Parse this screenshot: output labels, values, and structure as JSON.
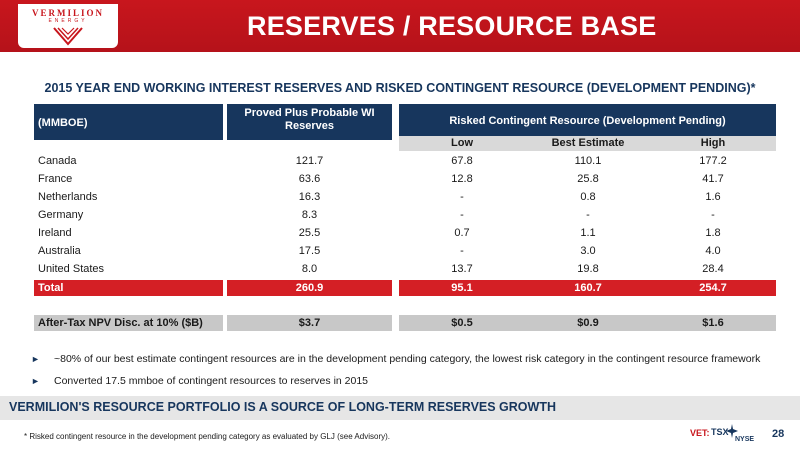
{
  "header": {
    "logo_text": "VERMILION",
    "logo_sub": "ENERGY",
    "title": "RESERVES / RESOURCE BASE"
  },
  "subtitle": "2015 YEAR END WORKING INTEREST RESERVES AND RISKED CONTINGENT RESOURCE (DEVELOPMENT PENDING)*",
  "table": {
    "unit_header": "(MMBOE)",
    "pp_header_line1": "Proved Plus Probable WI",
    "pp_header_line2": "Reserves",
    "rc_header": "Risked Contingent Resource (Development Pending)",
    "sub_headers": [
      "Low",
      "Best Estimate",
      "High"
    ],
    "rows": [
      [
        "Canada",
        "121.7",
        "67.8",
        "110.1",
        "177.2"
      ],
      [
        "France",
        "63.6",
        "12.8",
        "25.8",
        "41.7"
      ],
      [
        "Netherlands",
        "16.3",
        "-",
        "0.8",
        "1.6"
      ],
      [
        "Germany",
        "8.3",
        "-",
        "-",
        "-"
      ],
      [
        "Ireland",
        "25.5",
        "0.7",
        "1.1",
        "1.8"
      ],
      [
        "Australia",
        "17.5",
        "-",
        "3.0",
        "4.0"
      ],
      [
        "United States",
        "8.0",
        "13.7",
        "19.8",
        "28.4"
      ]
    ],
    "total": [
      "Total",
      "260.9",
      "95.1",
      "160.7",
      "254.7"
    ],
    "npv": [
      "After-Tax NPV Disc. at 10% ($B)",
      "$3.7",
      "$0.5",
      "$0.9",
      "$1.6"
    ]
  },
  "bullets": [
    "~80% of our best estimate contingent resources are in the development pending category, the lowest risk category in the contingent resource framework",
    "Converted 17.5 mmboe of contingent resources to reserves in 2015"
  ],
  "banner": "VERMILION'S RESOURCE PORTFOLIO IS A SOURCE OF LONG-TERM RESERVES GROWTH",
  "footer": {
    "footnote": "* Risked contingent resource in the development pending category as evaluated by GLJ (see Advisory).",
    "ticker": "VET:",
    "tsx": "TSX",
    "nyse": "NYSE",
    "page_number": "28"
  },
  "colors": {
    "brand_red": "#c8161d",
    "navy": "#17365d",
    "total_red": "#d41f25",
    "grey": "#c8c8c8"
  }
}
